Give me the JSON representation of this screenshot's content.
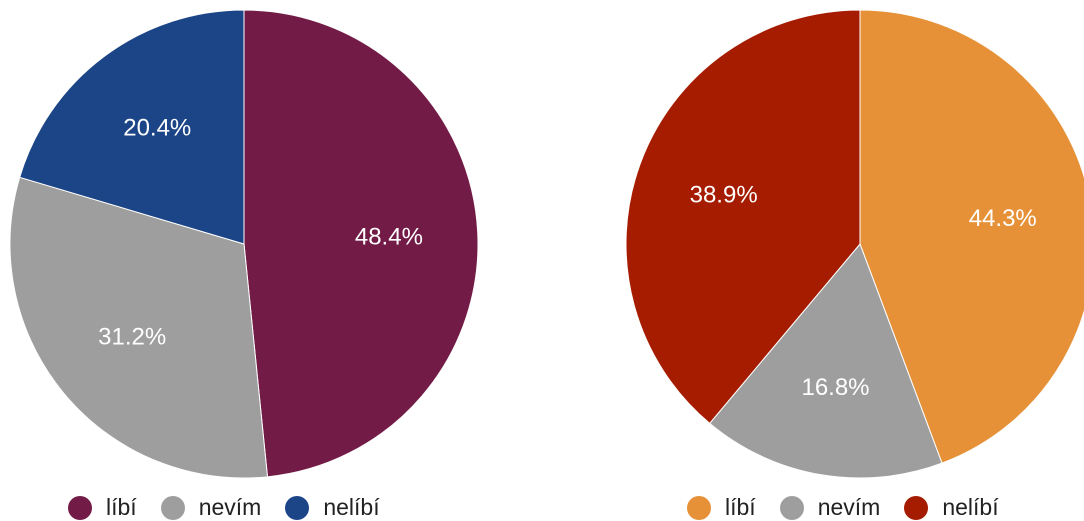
{
  "chart_data": [
    {
      "type": "pie",
      "title": "",
      "slices": [
        {
          "label": "líbí",
          "value": 48.4,
          "display": "48.4%",
          "color": "#731b47"
        },
        {
          "label": "nevím",
          "value": 31.2,
          "display": "31.2%",
          "color": "#9e9e9e"
        },
        {
          "label": "nelíbí",
          "value": 20.4,
          "display": "20.4%",
          "color": "#1c4587"
        }
      ],
      "legend_position": "bottom"
    },
    {
      "type": "pie",
      "title": "",
      "slices": [
        {
          "label": "líbí",
          "value": 44.3,
          "display": "44.3%",
          "color": "#e69138"
        },
        {
          "label": "nevím",
          "value": 16.8,
          "display": "16.8%",
          "color": "#9e9e9e"
        },
        {
          "label": "nelíbí",
          "value": 38.9,
          "display": "38.9%",
          "color": "#a61c00"
        }
      ],
      "legend_position": "bottom"
    }
  ]
}
